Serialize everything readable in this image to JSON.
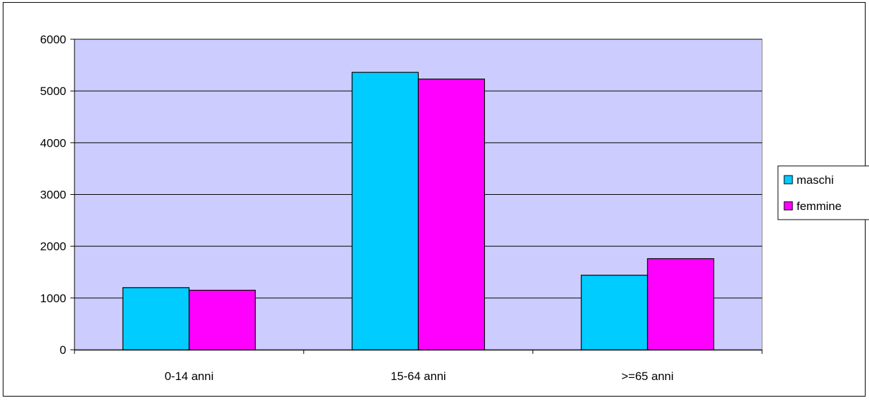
{
  "chart_data": {
    "type": "bar",
    "title": "",
    "xlabel": "",
    "ylabel": "",
    "categories": [
      "0-14 anni",
      "15-64 anni",
      ">=65 anni"
    ],
    "series": [
      {
        "name": "maschi",
        "color": "#00ccff",
        "values": [
          1200,
          5360,
          1440
        ]
      },
      {
        "name": "femmine",
        "color": "#ff00ff",
        "values": [
          1150,
          5230,
          1760
        ]
      }
    ],
    "ylim": [
      0,
      6000
    ],
    "yticks": [
      "0",
      "1000",
      "2000",
      "3000",
      "4000",
      "5000",
      "6000"
    ],
    "grid": true,
    "legend_position": "right",
    "plot_background": "#ccccff"
  }
}
